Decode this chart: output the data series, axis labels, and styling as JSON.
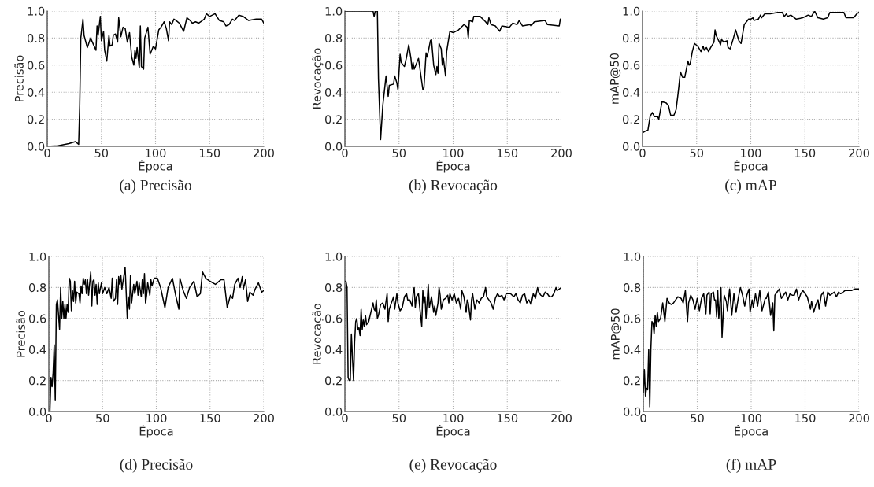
{
  "chart_data": [
    {
      "type": "line",
      "xlabel": "Época",
      "ylabel": "Precisão",
      "annotations": [
        "(a) Precisão"
      ],
      "xlim": [
        0,
        200
      ],
      "ylim": [
        0,
        1
      ],
      "xticks": [
        0,
        50,
        100,
        150,
        200
      ],
      "yticks": [
        {
          "value": 0,
          "label": "0.0"
        },
        {
          "value": 0.2,
          "label": "0.2"
        },
        {
          "value": 0.4,
          "label": "0.4"
        },
        {
          "value": 0.6,
          "label": "0.6"
        },
        {
          "value": 0.8,
          "label": "0.8"
        },
        {
          "value": 1,
          "label": "1.0"
        }
      ],
      "grid": true,
      "series": [
        {
          "color": "#000000",
          "x": [
            0,
            10,
            20,
            26,
            29,
            30,
            31,
            33,
            34,
            37,
            40,
            45,
            46,
            47,
            49,
            50,
            52,
            53,
            55,
            57,
            58,
            60,
            61,
            63,
            65,
            66,
            68,
            70,
            72,
            74,
            76,
            78,
            80,
            81,
            82,
            83,
            85,
            86,
            87,
            89,
            90,
            93,
            95,
            98,
            100,
            103,
            105,
            108,
            110,
            112,
            113,
            115,
            117,
            119,
            122,
            126,
            129,
            132,
            134,
            137,
            140,
            145,
            147,
            150,
            155,
            159,
            163,
            165,
            168,
            171,
            173,
            177,
            181,
            186,
            193,
            198,
            200
          ],
          "values": [
            0,
            0.005,
            0.02,
            0.035,
            0.015,
            0.3,
            0.8,
            0.94,
            0.82,
            0.73,
            0.8,
            0.71,
            0.89,
            0.82,
            0.96,
            0.78,
            0.85,
            0.71,
            0.63,
            0.82,
            0.74,
            0.75,
            0.82,
            0.83,
            0.77,
            0.95,
            0.81,
            0.88,
            0.87,
            0.77,
            0.84,
            0.66,
            0.6,
            0.71,
            0.65,
            0.73,
            0.58,
            0.89,
            0.59,
            0.57,
            0.8,
            0.88,
            0.68,
            0.74,
            0.72,
            0.86,
            0.88,
            0.92,
            0.87,
            0.78,
            0.92,
            0.9,
            0.94,
            0.93,
            0.91,
            0.85,
            0.95,
            0.93,
            0.91,
            0.92,
            0.91,
            0.94,
            0.98,
            0.96,
            0.98,
            0.93,
            0.92,
            0.89,
            0.9,
            0.94,
            0.93,
            0.97,
            0.96,
            0.93,
            0.94,
            0.94,
            0.91
          ]
        }
      ]
    },
    {
      "type": "line",
      "xlabel": "Época",
      "ylabel": "Revocação",
      "annotations": [
        "(b) Revocação"
      ],
      "xlim": [
        0,
        200
      ],
      "ylim": [
        0,
        1
      ],
      "xticks": [
        0,
        50,
        100,
        150,
        200
      ],
      "yticks": [
        {
          "value": 0,
          "label": "0.0"
        },
        {
          "value": 0.2,
          "label": "0.2"
        },
        {
          "value": 0.4,
          "label": "0.4"
        },
        {
          "value": 0.6,
          "label": "0.6"
        },
        {
          "value": 0.8,
          "label": "0.8"
        },
        {
          "value": 1,
          "label": "1.0"
        }
      ],
      "grid": true,
      "series": [
        {
          "color": "#000000",
          "x": [
            0,
            26,
            27,
            28,
            30,
            31,
            33,
            35,
            38,
            40,
            41,
            45,
            46,
            48,
            49,
            51,
            52,
            55,
            57,
            59,
            61,
            62,
            63,
            64,
            68,
            72,
            73,
            75,
            76,
            79,
            80,
            82,
            84,
            85,
            86,
            87,
            89,
            90,
            91,
            93,
            94,
            96,
            97,
            100,
            105,
            110,
            113,
            114,
            115,
            118,
            119,
            125,
            130,
            132,
            133,
            135,
            139,
            143,
            145,
            152,
            155,
            159,
            161,
            164,
            171,
            172,
            175,
            185,
            187,
            198,
            199,
            200
          ],
          "values": [
            1,
            1,
            0.96,
            1,
            1,
            0.5,
            0.05,
            0.3,
            0.52,
            0.37,
            0.45,
            0.46,
            0.52,
            0.47,
            0.42,
            0.68,
            0.62,
            0.59,
            0.66,
            0.75,
            0.65,
            0.57,
            0.62,
            0.57,
            0.65,
            0.42,
            0.43,
            0.69,
            0.66,
            0.78,
            0.79,
            0.6,
            0.53,
            0.59,
            0.54,
            0.76,
            0.72,
            0.6,
            0.65,
            0.52,
            0.7,
            0.8,
            0.85,
            0.84,
            0.86,
            0.9,
            0.88,
            0.8,
            0.93,
            0.92,
            0.96,
            0.96,
            0.92,
            0.9,
            0.95,
            0.9,
            0.89,
            0.85,
            0.89,
            0.88,
            0.91,
            0.9,
            0.93,
            0.89,
            0.9,
            0.89,
            0.92,
            0.93,
            0.9,
            0.89,
            0.94,
            0.94
          ]
        }
      ]
    },
    {
      "type": "line",
      "xlabel": "Época",
      "ylabel": "mAP@50",
      "annotations": [
        "(c) mAP"
      ],
      "xlim": [
        0,
        200
      ],
      "ylim": [
        0,
        1
      ],
      "xticks": [
        0,
        50,
        100,
        150,
        200
      ],
      "yticks": [
        {
          "value": 0,
          "label": "0.0"
        },
        {
          "value": 0.2,
          "label": "0.2"
        },
        {
          "value": 0.4,
          "label": "0.4"
        },
        {
          "value": 0.6,
          "label": "0.6"
        },
        {
          "value": 0.8,
          "label": "0.8"
        },
        {
          "value": 1,
          "label": "1.0"
        }
      ],
      "grid": true,
      "series": [
        {
          "color": "#000000",
          "x": [
            0,
            2,
            5,
            7,
            9,
            11,
            14,
            15,
            18,
            22,
            24,
            26,
            29,
            31,
            33,
            35,
            37,
            39,
            42,
            43,
            44,
            46,
            48,
            51,
            54,
            56,
            57,
            59,
            61,
            63,
            66,
            67,
            68,
            71,
            72,
            73,
            75,
            78,
            79,
            81,
            84,
            86,
            89,
            91,
            94,
            96,
            98,
            100,
            102,
            103,
            107,
            109,
            110,
            113,
            118,
            125,
            129,
            131,
            133,
            134,
            137,
            142,
            148,
            153,
            156,
            159,
            162,
            167,
            171,
            173,
            180,
            186,
            188,
            195,
            198,
            200
          ],
          "values": [
            0.1,
            0.11,
            0.12,
            0.22,
            0.25,
            0.22,
            0.22,
            0.2,
            0.33,
            0.32,
            0.3,
            0.23,
            0.23,
            0.27,
            0.4,
            0.55,
            0.51,
            0.51,
            0.63,
            0.6,
            0.61,
            0.7,
            0.76,
            0.74,
            0.7,
            0.74,
            0.71,
            0.73,
            0.7,
            0.73,
            0.77,
            0.86,
            0.82,
            0.77,
            0.75,
            0.79,
            0.77,
            0.78,
            0.73,
            0.72,
            0.8,
            0.86,
            0.78,
            0.76,
            0.9,
            0.92,
            0.94,
            0.94,
            0.95,
            0.93,
            0.94,
            0.97,
            0.95,
            0.98,
            0.98,
            0.99,
            0.99,
            0.96,
            0.98,
            0.96,
            0.97,
            0.94,
            0.95,
            0.97,
            0.96,
            1.0,
            0.95,
            0.94,
            0.95,
            0.99,
            0.99,
            0.99,
            0.95,
            0.95,
            0.98,
            0.99
          ]
        }
      ]
    },
    {
      "type": "line",
      "xlabel": "Época",
      "ylabel": "Precisão",
      "annotations": [
        "(d) Precisão"
      ],
      "xlim": [
        0,
        200
      ],
      "ylim": [
        0,
        1
      ],
      "xticks": [
        0,
        50,
        100,
        150,
        200
      ],
      "yticks": [
        {
          "value": 0,
          "label": "0.0"
        },
        {
          "value": 0.2,
          "label": "0.2"
        },
        {
          "value": 0.4,
          "label": "0.4"
        },
        {
          "value": 0.6,
          "label": "0.6"
        },
        {
          "value": 0.8,
          "label": "0.8"
        },
        {
          "value": 1,
          "label": "1.0"
        }
      ],
      "grid": true,
      "series": [
        {
          "color": "#000000",
          "x": [
            0,
            1,
            2,
            3,
            4,
            5,
            6,
            7,
            8,
            10,
            11,
            12,
            13,
            14,
            15,
            16,
            17,
            18,
            19,
            20,
            21,
            22,
            23,
            24,
            25,
            26,
            28,
            29,
            30,
            31,
            32,
            33,
            34,
            35,
            36,
            37,
            39,
            40,
            41,
            42,
            43,
            44,
            45,
            46,
            47,
            49,
            50,
            52,
            54,
            56,
            58,
            59,
            60,
            62,
            63,
            64,
            65,
            66,
            67,
            68,
            71,
            73,
            74,
            75,
            76,
            77,
            79,
            80,
            82,
            83,
            84,
            86,
            87,
            88,
            89,
            90,
            91,
            92,
            94,
            95,
            96,
            98,
            101,
            104,
            108,
            111,
            115,
            118,
            121,
            122,
            125,
            128,
            131,
            135,
            138,
            141,
            143,
            146,
            150,
            155,
            160,
            163,
            166,
            169,
            171,
            173,
            176,
            178,
            180,
            181,
            183,
            185,
            187,
            190,
            192,
            195,
            198,
            200
          ],
          "values": [
            0,
            0,
            0.22,
            0.16,
            0.25,
            0.43,
            0.07,
            0.69,
            0.72,
            0.53,
            0.8,
            0.6,
            0.71,
            0.6,
            0.69,
            0.6,
            0.69,
            0.64,
            0.86,
            0.84,
            0.65,
            0.78,
            0.71,
            0.84,
            0.7,
            0.77,
            0.76,
            0.7,
            0.81,
            0.76,
            0.86,
            0.82,
            0.85,
            0.76,
            0.85,
            0.75,
            0.9,
            0.68,
            0.84,
            0.85,
            0.75,
            0.82,
            0.69,
            0.83,
            0.76,
            0.83,
            0.76,
            0.8,
            0.76,
            0.8,
            0.73,
            0.86,
            0.71,
            0.73,
            0.85,
            0.69,
            0.87,
            0.82,
            0.88,
            0.79,
            0.93,
            0.6,
            0.74,
            0.66,
            0.88,
            0.7,
            0.82,
            0.76,
            0.84,
            0.75,
            0.83,
            0.74,
            0.85,
            0.76,
            0.89,
            0.7,
            0.75,
            0.83,
            0.75,
            0.85,
            0.81,
            0.86,
            0.86,
            0.8,
            0.67,
            0.8,
            0.86,
            0.75,
            0.66,
            0.86,
            0.78,
            0.73,
            0.8,
            0.84,
            0.74,
            0.76,
            0.9,
            0.86,
            0.84,
            0.82,
            0.85,
            0.85,
            0.67,
            0.75,
            0.73,
            0.82,
            0.86,
            0.8,
            0.87,
            0.79,
            0.85,
            0.71,
            0.77,
            0.75,
            0.79,
            0.83,
            0.77,
            0.78
          ]
        }
      ]
    },
    {
      "type": "line",
      "xlabel": "Época",
      "ylabel": "Revocação",
      "annotations": [
        "(e) Revocação"
      ],
      "xlim": [
        0,
        200
      ],
      "ylim": [
        0,
        1
      ],
      "xticks": [
        0,
        50,
        100,
        150,
        200
      ],
      "yticks": [
        {
          "value": 0,
          "label": "0.0"
        },
        {
          "value": 0.2,
          "label": "0.2"
        },
        {
          "value": 0.4,
          "label": "0.4"
        },
        {
          "value": 0.6,
          "label": "0.6"
        },
        {
          "value": 0.8,
          "label": "0.8"
        },
        {
          "value": 1,
          "label": "1.0"
        }
      ],
      "grid": true,
      "series": [
        {
          "color": "#000000",
          "x": [
            0,
            1,
            2,
            3,
            4,
            5,
            6,
            7,
            8,
            9,
            10,
            11,
            12,
            13,
            14,
            15,
            16,
            17,
            18,
            19,
            20,
            22,
            24,
            26,
            27,
            28,
            29,
            30,
            31,
            33,
            35,
            37,
            39,
            40,
            41,
            43,
            45,
            46,
            48,
            49,
            51,
            53,
            55,
            57,
            58,
            60,
            62,
            63,
            64,
            65,
            66,
            68,
            69,
            71,
            72,
            73,
            74,
            75,
            77,
            78,
            80,
            82,
            83,
            84,
            86,
            87,
            88,
            89,
            91,
            93,
            95,
            96,
            97,
            99,
            101,
            103,
            105,
            107,
            108,
            110,
            112,
            113,
            114,
            116,
            117,
            118,
            120,
            122,
            124,
            126,
            128,
            130,
            131,
            133,
            135,
            137,
            139,
            141,
            143,
            145,
            147,
            149,
            153,
            156,
            158,
            160,
            162,
            164,
            166,
            168,
            170,
            172,
            174,
            176,
            178,
            179,
            181,
            183,
            185,
            187,
            189,
            191,
            193,
            195,
            196,
            198,
            200
          ],
          "values": [
            0.84,
            0.84,
            0.8,
            0.22,
            0.2,
            0.2,
            0.5,
            0.35,
            0.2,
            0.45,
            0.58,
            0.6,
            0.53,
            0.54,
            0.49,
            0.66,
            0.53,
            0.59,
            0.55,
            0.62,
            0.56,
            0.58,
            0.64,
            0.7,
            0.66,
            0.65,
            0.72,
            0.6,
            0.62,
            0.69,
            0.7,
            0.66,
            0.76,
            0.58,
            0.66,
            0.7,
            0.74,
            0.66,
            0.76,
            0.7,
            0.65,
            0.67,
            0.74,
            0.76,
            0.72,
            0.72,
            0.68,
            0.76,
            0.8,
            0.67,
            0.74,
            0.76,
            0.68,
            0.55,
            0.78,
            0.7,
            0.74,
            0.6,
            0.82,
            0.67,
            0.74,
            0.64,
            0.68,
            0.62,
            0.7,
            0.8,
            0.75,
            0.66,
            0.72,
            0.73,
            0.75,
            0.7,
            0.76,
            0.72,
            0.76,
            0.7,
            0.73,
            0.66,
            0.78,
            0.74,
            0.64,
            0.72,
            0.7,
            0.59,
            0.72,
            0.76,
            0.66,
            0.72,
            0.7,
            0.73,
            0.74,
            0.8,
            0.74,
            0.72,
            0.7,
            0.66,
            0.73,
            0.76,
            0.74,
            0.75,
            0.72,
            0.76,
            0.76,
            0.74,
            0.76,
            0.72,
            0.7,
            0.75,
            0.76,
            0.7,
            0.72,
            0.69,
            0.76,
            0.73,
            0.8,
            0.77,
            0.75,
            0.74,
            0.77,
            0.76,
            0.74,
            0.74,
            0.76,
            0.8,
            0.78,
            0.79,
            0.8
          ]
        }
      ]
    },
    {
      "type": "line",
      "xlabel": "Época",
      "ylabel": "mAP@50",
      "annotations": [
        "(f) mAP"
      ],
      "xlim": [
        0,
        200
      ],
      "ylim": [
        0,
        1
      ],
      "xticks": [
        0,
        50,
        100,
        150,
        200
      ],
      "yticks": [
        {
          "value": 0,
          "label": "0.0"
        },
        {
          "value": 0.2,
          "label": "0.2"
        },
        {
          "value": 0.4,
          "label": "0.4"
        },
        {
          "value": 0.6,
          "label": "0.6"
        },
        {
          "value": 0.8,
          "label": "0.8"
        },
        {
          "value": 1,
          "label": "1.0"
        }
      ],
      "grid": true,
      "series": [
        {
          "color": "#000000",
          "x": [
            0,
            1,
            2,
            3,
            4,
            5,
            6,
            7,
            8,
            9,
            10,
            11,
            12,
            13,
            14,
            16,
            18,
            19,
            20,
            22,
            24,
            26,
            28,
            30,
            32,
            35,
            37,
            39,
            41,
            42,
            44,
            46,
            48,
            50,
            52,
            54,
            56,
            58,
            59,
            61,
            62,
            63,
            65,
            66,
            67,
            68,
            69,
            70,
            72,
            73,
            75,
            77,
            78,
            80,
            82,
            84,
            86,
            88,
            90,
            92,
            94,
            96,
            98,
            99,
            101,
            102,
            104,
            106,
            108,
            110,
            112,
            113,
            114,
            116,
            118,
            120,
            121,
            122,
            124,
            126,
            128,
            130,
            132,
            134,
            136,
            138,
            140,
            142,
            144,
            146,
            148,
            150,
            152,
            155,
            156,
            158,
            160,
            162,
            163,
            165,
            167,
            169,
            171,
            173,
            175,
            177,
            179,
            181,
            183,
            185,
            187,
            190,
            193,
            196,
            200
          ],
          "values": [
            0.12,
            0.27,
            0.1,
            0.15,
            0.14,
            0.4,
            0.03,
            0.4,
            0.58,
            0.57,
            0.5,
            0.62,
            0.55,
            0.64,
            0.58,
            0.6,
            0.7,
            0.64,
            0.58,
            0.73,
            0.7,
            0.69,
            0.7,
            0.72,
            0.74,
            0.73,
            0.7,
            0.78,
            0.58,
            0.7,
            0.75,
            0.72,
            0.66,
            0.73,
            0.65,
            0.73,
            0.76,
            0.63,
            0.75,
            0.77,
            0.63,
            0.76,
            0.77,
            0.72,
            0.72,
            0.61,
            0.78,
            0.6,
            0.8,
            0.48,
            0.75,
            0.71,
            0.65,
            0.79,
            0.62,
            0.76,
            0.64,
            0.73,
            0.8,
            0.75,
            0.68,
            0.75,
            0.79,
            0.64,
            0.72,
            0.67,
            0.76,
            0.68,
            0.78,
            0.65,
            0.7,
            0.73,
            0.73,
            0.77,
            0.62,
            0.7,
            0.52,
            0.75,
            0.77,
            0.79,
            0.73,
            0.75,
            0.77,
            0.72,
            0.76,
            0.75,
            0.75,
            0.79,
            0.72,
            0.76,
            0.78,
            0.76,
            0.74,
            0.66,
            0.71,
            0.64,
            0.69,
            0.72,
            0.66,
            0.75,
            0.77,
            0.68,
            0.77,
            0.75,
            0.76,
            0.77,
            0.74,
            0.77,
            0.76,
            0.77,
            0.78,
            0.78,
            0.78,
            0.79,
            0.79
          ]
        }
      ]
    }
  ]
}
